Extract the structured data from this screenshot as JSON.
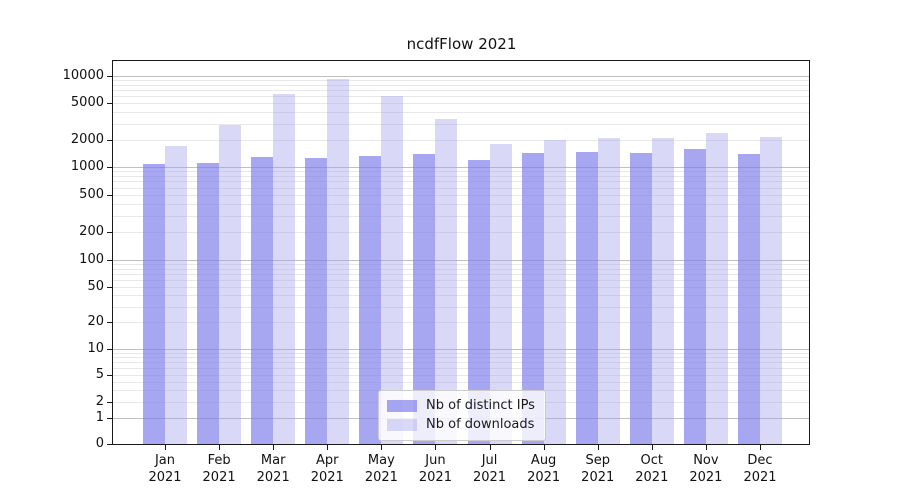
{
  "title": "ncdfFlow 2021",
  "chart_data": {
    "type": "bar",
    "title": "ncdfFlow 2021",
    "categories": [
      "Jan 2021",
      "Feb 2021",
      "Mar 2021",
      "Apr 2021",
      "May 2021",
      "Jun 2021",
      "Jul 2021",
      "Aug 2021",
      "Sep 2021",
      "Oct 2021",
      "Nov 2021",
      "Dec 2021"
    ],
    "series": [
      {
        "name": "Nb of distinct IPs",
        "color": "rgba(124,124,235,0.68)",
        "values": [
          1080,
          1120,
          1300,
          1270,
          1330,
          1400,
          1200,
          1440,
          1480,
          1440,
          1560,
          1390
        ]
      },
      {
        "name": "Nb of downloads",
        "color": "rgba(160,160,235,0.40)",
        "values": [
          1700,
          2900,
          6400,
          9200,
          6000,
          3400,
          1780,
          2000,
          2100,
          2100,
          2370,
          2150
        ]
      }
    ],
    "yscale": "symlog",
    "y_ticks": [
      0,
      1,
      2,
      5,
      10,
      20,
      50,
      100,
      200,
      500,
      1000,
      2000,
      5000,
      10000
    ],
    "ylim": [
      0,
      12000
    ],
    "xlabel": "",
    "ylabel": "",
    "grid": true,
    "legend_position": "lower center"
  },
  "colors": {
    "major_grid": "#c0c0c0",
    "minor_grid": "#e8e8e8",
    "axis": "#1a1a1a",
    "text": "#111111",
    "background": "#ffffff"
  }
}
